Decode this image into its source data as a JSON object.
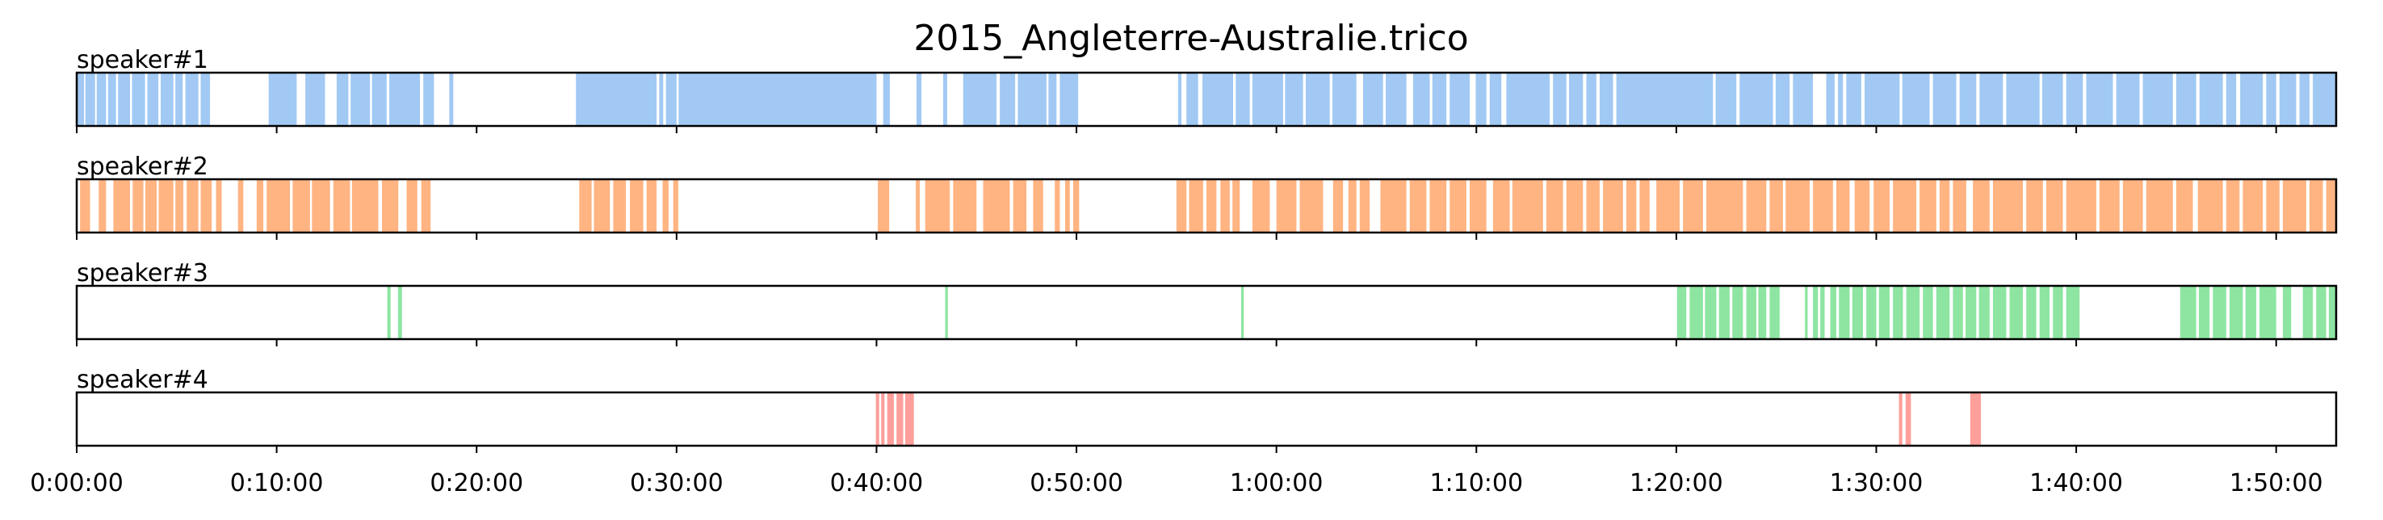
{
  "chart_data": {
    "type": "timeline",
    "title": "2015_Angleterre-Australie.trico",
    "x_unit": "seconds",
    "xlim": [
      0,
      6780
    ],
    "x_ticks": [
      {
        "value": 0,
        "label": "0:00:00"
      },
      {
        "value": 600,
        "label": "0:10:00"
      },
      {
        "value": 1200,
        "label": "0:20:00"
      },
      {
        "value": 1800,
        "label": "0:30:00"
      },
      {
        "value": 2400,
        "label": "0:40:00"
      },
      {
        "value": 3000,
        "label": "0:50:00"
      },
      {
        "value": 3600,
        "label": "1:00:00"
      },
      {
        "value": 4200,
        "label": "1:10:00"
      },
      {
        "value": 4800,
        "label": "1:20:00"
      },
      {
        "value": 5400,
        "label": "1:30:00"
      },
      {
        "value": 6000,
        "label": "1:40:00"
      },
      {
        "value": 6600,
        "label": "1:50:00"
      }
    ],
    "series": [
      {
        "name": "speaker#1",
        "color": "#a1c9f4",
        "segments": [
          [
            0,
            22
          ],
          [
            26,
            55
          ],
          [
            60,
            88
          ],
          [
            94,
            118
          ],
          [
            124,
            160
          ],
          [
            166,
            205
          ],
          [
            212,
            245
          ],
          [
            252,
            290
          ],
          [
            296,
            318
          ],
          [
            326,
            365
          ],
          [
            372,
            400
          ],
          [
            576,
            660
          ],
          [
            686,
            745
          ],
          [
            780,
            815
          ],
          [
            822,
            880
          ],
          [
            886,
            930
          ],
          [
            938,
            1030
          ],
          [
            1040,
            1072
          ],
          [
            1118,
            1130
          ],
          [
            1498,
            1740
          ],
          [
            1748,
            1760
          ],
          [
            1768,
            1800
          ],
          [
            1806,
            2400
          ],
          [
            2420,
            2440
          ],
          [
            2520,
            2535
          ],
          [
            2600,
            2612
          ],
          [
            2660,
            2760
          ],
          [
            2770,
            2816
          ],
          [
            2824,
            2910
          ],
          [
            2916,
            2940
          ],
          [
            2950,
            3005
          ],
          [
            3305,
            3315
          ],
          [
            3330,
            3365
          ],
          [
            3378,
            3470
          ],
          [
            3478,
            3520
          ],
          [
            3528,
            3620
          ],
          [
            3626,
            3680
          ],
          [
            3688,
            3760
          ],
          [
            3768,
            3840
          ],
          [
            3860,
            3920
          ],
          [
            3928,
            3990
          ],
          [
            4010,
            4060
          ],
          [
            4068,
            4110
          ],
          [
            4120,
            4180
          ],
          [
            4198,
            4230
          ],
          [
            4240,
            4275
          ],
          [
            4290,
            4420
          ],
          [
            4430,
            4470
          ],
          [
            4478,
            4520
          ],
          [
            4530,
            4560
          ],
          [
            4570,
            4610
          ],
          [
            4620,
            4910
          ],
          [
            4918,
            4980
          ],
          [
            4990,
            5090
          ],
          [
            5098,
            5140
          ],
          [
            5150,
            5210
          ],
          [
            5250,
            5275
          ],
          [
            5285,
            5300
          ],
          [
            5310,
            5355
          ],
          [
            5365,
            5470
          ],
          [
            5478,
            5560
          ],
          [
            5570,
            5640
          ],
          [
            5650,
            5700
          ],
          [
            5710,
            5780
          ],
          [
            5790,
            5890
          ],
          [
            5898,
            5960
          ],
          [
            5970,
            6020
          ],
          [
            6030,
            6110
          ],
          [
            6120,
            6190
          ],
          [
            6200,
            6290
          ],
          [
            6300,
            6360
          ],
          [
            6370,
            6440
          ],
          [
            6450,
            6480
          ],
          [
            6492,
            6560
          ],
          [
            6570,
            6600
          ],
          [
            6610,
            6660
          ],
          [
            6670,
            6700
          ],
          [
            6710,
            6780
          ]
        ]
      },
      {
        "name": "speaker#2",
        "color": "#ffb482",
        "segments": [
          [
            10,
            40
          ],
          [
            66,
            88
          ],
          [
            110,
            160
          ],
          [
            168,
            200
          ],
          [
            206,
            240
          ],
          [
            246,
            290
          ],
          [
            296,
            320
          ],
          [
            330,
            365
          ],
          [
            372,
            405
          ],
          [
            418,
            435
          ],
          [
            484,
            500
          ],
          [
            540,
            560
          ],
          [
            570,
            640
          ],
          [
            648,
            700
          ],
          [
            706,
            760
          ],
          [
            770,
            820
          ],
          [
            826,
            905
          ],
          [
            916,
            965
          ],
          [
            990,
            1022
          ],
          [
            1034,
            1062
          ],
          [
            1508,
            1545
          ],
          [
            1552,
            1600
          ],
          [
            1610,
            1648
          ],
          [
            1660,
            1700
          ],
          [
            1710,
            1740
          ],
          [
            1758,
            1776
          ],
          [
            1790,
            1805
          ],
          [
            2404,
            2438
          ],
          [
            2518,
            2530
          ],
          [
            2546,
            2620
          ],
          [
            2630,
            2700
          ],
          [
            2720,
            2800
          ],
          [
            2810,
            2850
          ],
          [
            2870,
            2900
          ],
          [
            2935,
            2950
          ],
          [
            2966,
            2980
          ],
          [
            2990,
            3008
          ],
          [
            3300,
            3330
          ],
          [
            3338,
            3380
          ],
          [
            3390,
            3420
          ],
          [
            3432,
            3460
          ],
          [
            3468,
            3490
          ],
          [
            3528,
            3580
          ],
          [
            3600,
            3660
          ],
          [
            3670,
            3740
          ],
          [
            3770,
            3800
          ],
          [
            3816,
            3840
          ],
          [
            3850,
            3880
          ],
          [
            3912,
            3990
          ],
          [
            4000,
            4050
          ],
          [
            4060,
            4110
          ],
          [
            4120,
            4170
          ],
          [
            4180,
            4230
          ],
          [
            4250,
            4300
          ],
          [
            4308,
            4400
          ],
          [
            4410,
            4460
          ],
          [
            4470,
            4520
          ],
          [
            4530,
            4570
          ],
          [
            4580,
            4640
          ],
          [
            4650,
            4680
          ],
          [
            4690,
            4720
          ],
          [
            4740,
            4810
          ],
          [
            4820,
            4880
          ],
          [
            4890,
            5000
          ],
          [
            5010,
            5070
          ],
          [
            5080,
            5120
          ],
          [
            5128,
            5200
          ],
          [
            5210,
            5270
          ],
          [
            5280,
            5320
          ],
          [
            5335,
            5380
          ],
          [
            5392,
            5440
          ],
          [
            5450,
            5520
          ],
          [
            5530,
            5580
          ],
          [
            5590,
            5620
          ],
          [
            5630,
            5670
          ],
          [
            5690,
            5740
          ],
          [
            5750,
            5840
          ],
          [
            5850,
            5900
          ],
          [
            5910,
            5960
          ],
          [
            5970,
            6060
          ],
          [
            6070,
            6130
          ],
          [
            6140,
            6200
          ],
          [
            6210,
            6290
          ],
          [
            6300,
            6350
          ],
          [
            6365,
            6440
          ],
          [
            6450,
            6490
          ],
          [
            6500,
            6560
          ],
          [
            6570,
            6610
          ],
          [
            6620,
            6690
          ],
          [
            6700,
            6740
          ],
          [
            6750,
            6780
          ]
        ]
      },
      {
        "name": "speaker#3",
        "color": "#8de5a1",
        "segments": [
          [
            932,
            942
          ],
          [
            964,
            976
          ],
          [
            2606,
            2614
          ],
          [
            3494,
            3502
          ],
          [
            4802,
            4830
          ],
          [
            4840,
            4880
          ],
          [
            4886,
            4920
          ],
          [
            4928,
            4960
          ],
          [
            4968,
            5000
          ],
          [
            5010,
            5040
          ],
          [
            5046,
            5070
          ],
          [
            5080,
            5110
          ],
          [
            5186,
            5194
          ],
          [
            5210,
            5225
          ],
          [
            5232,
            5245
          ],
          [
            5262,
            5280
          ],
          [
            5288,
            5320
          ],
          [
            5328,
            5360
          ],
          [
            5370,
            5400
          ],
          [
            5408,
            5440
          ],
          [
            5450,
            5480
          ],
          [
            5490,
            5530
          ],
          [
            5540,
            5570
          ],
          [
            5580,
            5620
          ],
          [
            5630,
            5660
          ],
          [
            5668,
            5700
          ],
          [
            5708,
            5740
          ],
          [
            5750,
            5790
          ],
          [
            5800,
            5840
          ],
          [
            5850,
            5880
          ],
          [
            5890,
            5920
          ],
          [
            5930,
            5960
          ],
          [
            5970,
            6010
          ],
          [
            6312,
            6360
          ],
          [
            6368,
            6400
          ],
          [
            6410,
            6450
          ],
          [
            6460,
            6500
          ],
          [
            6508,
            6540
          ],
          [
            6550,
            6600
          ],
          [
            6620,
            6645
          ],
          [
            6680,
            6710
          ],
          [
            6720,
            6750
          ],
          [
            6758,
            6780
          ]
        ]
      },
      {
        "name": "speaker#4",
        "color": "#ff9f9b",
        "segments": [
          [
            2398,
            2408
          ],
          [
            2414,
            2424
          ],
          [
            2432,
            2452
          ],
          [
            2460,
            2480
          ],
          [
            2486,
            2512
          ],
          [
            5468,
            5478
          ],
          [
            5488,
            5504
          ],
          [
            5682,
            5714
          ]
        ]
      }
    ]
  }
}
